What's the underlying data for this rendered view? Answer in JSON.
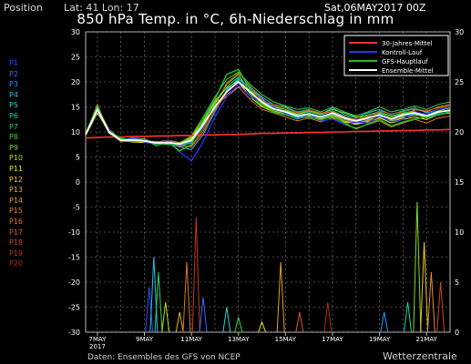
{
  "header": {
    "position_label": "Position",
    "lat_lon": "Lat: 41 Lon: 17",
    "title": "850 hPa Temp. in °C, 6h-Niederschlag in mm",
    "run": "Sat,06MAY2017 00Z"
  },
  "footer": {
    "source": "Daten: Ensembles des GFS von NCEP",
    "brand": "Wetterzentrale"
  },
  "members": [
    {
      "label": "P1",
      "color": "#2d4bff"
    },
    {
      "label": "P2",
      "color": "#3a6bff"
    },
    {
      "label": "P3",
      "color": "#1f9bff"
    },
    {
      "label": "P4",
      "color": "#1ec4f0"
    },
    {
      "label": "P5",
      "color": "#1fd9c8"
    },
    {
      "label": "P6",
      "color": "#22d89c"
    },
    {
      "label": "P7",
      "color": "#27d65e"
    },
    {
      "label": "P8",
      "color": "#39d636"
    },
    {
      "label": "P9",
      "color": "#7fdc28"
    },
    {
      "label": "P10",
      "color": "#b7e022"
    },
    {
      "label": "P11",
      "color": "#f1ea14"
    },
    {
      "label": "P12",
      "color": "#f0c814"
    },
    {
      "label": "P13",
      "color": "#e8b41c"
    },
    {
      "label": "P14",
      "color": "#e6a020"
    },
    {
      "label": "P15",
      "color": "#e48b22"
    },
    {
      "label": "P16",
      "color": "#e07620"
    },
    {
      "label": "P17",
      "color": "#d85e20"
    },
    {
      "label": "P18",
      "color": "#cf4820"
    },
    {
      "label": "P19",
      "color": "#c63620"
    },
    {
      "label": "P20",
      "color": "#b62a1e"
    }
  ],
  "chart_data": {
    "type": "line",
    "title": "850 hPa Temp. in °C, 6h-Niederschlag in mm",
    "x_ticks": [
      "7MAY",
      "9MAY",
      "11MAY",
      "13MAY",
      "15MAY",
      "17MAY",
      "19MAY",
      "21MAY"
    ],
    "x_year_label": "2017",
    "x_range_days": [
      6.5,
      22.0
    ],
    "left_axis": {
      "ylim": [
        -30,
        30
      ],
      "ticks": [
        30,
        25,
        20,
        15,
        10,
        5,
        0,
        -5,
        -10,
        -15,
        -20,
        -25,
        -30
      ]
    },
    "right_axis": {
      "ylim": [
        0,
        30
      ],
      "ticks": [
        30,
        25,
        20,
        15,
        10,
        5,
        0
      ]
    },
    "legend": {
      "placement": "top-right",
      "entries": [
        {
          "name": "30-Jahres-Mittel",
          "color": "#ff3030"
        },
        {
          "name": "Kontroll-Lauf",
          "color": "#3030ff"
        },
        {
          "name": "GFS-Hauptlauf",
          "color": "#20c020"
        },
        {
          "name": "Ensemble-Mittel",
          "color": "#ffffff"
        }
      ]
    },
    "day_x": [
      6.5,
      7.0,
      7.5,
      8.0,
      8.5,
      9.0,
      9.5,
      10.0,
      10.5,
      11.0,
      11.5,
      12.0,
      12.5,
      13.0,
      13.5,
      14.0,
      14.5,
      15.0,
      15.5,
      16.0,
      16.5,
      17.0,
      17.5,
      18.0,
      18.5,
      19.0,
      19.5,
      20.0,
      20.5,
      21.0,
      21.5,
      22.0
    ],
    "climatology": [
      8.8,
      8.9,
      9.0,
      9.0,
      9.1,
      9.1,
      9.2,
      9.2,
      9.3,
      9.3,
      9.4,
      9.4,
      9.5,
      9.5,
      9.6,
      9.7,
      9.7,
      9.8,
      9.8,
      9.9,
      9.9,
      10.0,
      10.0,
      10.1,
      10.1,
      10.2,
      10.2,
      10.3,
      10.3,
      10.4,
      10.4,
      10.5
    ],
    "ensemble_mean": [
      9.5,
      14.5,
      10.0,
      8.3,
      8.4,
      8.2,
      7.8,
      7.9,
      7.6,
      8.3,
      11.5,
      15.0,
      18.0,
      20.0,
      18.0,
      16.0,
      14.6,
      14.0,
      13.2,
      13.6,
      13.0,
      13.8,
      12.8,
      12.2,
      12.8,
      13.4,
      12.6,
      13.4,
      13.8,
      13.2,
      14.0,
      14.3
    ],
    "control_run": [
      9.5,
      14.2,
      10.3,
      8.1,
      8.6,
      8.0,
      7.5,
      8.3,
      6.0,
      4.2,
      8.0,
      13.0,
      17.0,
      19.5,
      17.0,
      16.0,
      15.0,
      13.6,
      12.5,
      13.5,
      12.2,
      12.6,
      11.5,
      12.0,
      11.8,
      13.2,
      12.0,
      12.5,
      14.0,
      13.5,
      14.5,
      15.0
    ],
    "gfs_main_run": [
      9.6,
      15.0,
      10.0,
      8.8,
      8.2,
      8.5,
      7.3,
      8.0,
      6.2,
      7.5,
      12.5,
      16.5,
      21.5,
      22.5,
      18.5,
      15.5,
      14.0,
      13.4,
      12.8,
      13.0,
      12.4,
      13.2,
      11.8,
      10.6,
      11.6,
      12.5,
      11.2,
      12.0,
      12.6,
      13.0,
      13.4,
      14.0
    ],
    "members": [
      [
        9.4,
        14.0,
        10.2,
        8.0,
        8.5,
        8.4,
        7.6,
        7.5,
        7.2,
        7.8,
        11.0,
        15.5,
        19.0,
        21.0,
        17.5,
        15.2,
        14.8,
        14.2,
        13.5,
        14.0,
        13.4,
        14.2,
        13.2,
        12.4,
        13.5,
        14.0,
        13.2,
        13.8,
        14.2,
        12.8,
        13.8,
        14.5
      ],
      [
        9.6,
        15.5,
        9.8,
        8.6,
        8.2,
        8.1,
        8.0,
        8.3,
        7.9,
        9.0,
        12.5,
        16.0,
        17.0,
        19.0,
        18.5,
        16.5,
        15.0,
        14.5,
        13.0,
        13.2,
        12.5,
        13.5,
        12.5,
        11.8,
        12.2,
        13.0,
        12.2,
        13.0,
        14.5,
        14.0,
        15.0,
        15.5
      ],
      [
        9.5,
        14.8,
        10.5,
        8.4,
        8.8,
        8.6,
        7.4,
        7.8,
        7.0,
        6.5,
        9.5,
        14.0,
        18.5,
        20.5,
        19.0,
        17.0,
        15.5,
        15.0,
        14.0,
        14.5,
        13.5,
        14.8,
        13.5,
        12.8,
        13.8,
        14.5,
        13.5,
        14.2,
        14.8,
        13.8,
        14.5,
        15.0
      ],
      [
        9.3,
        13.8,
        10.0,
        8.2,
        8.0,
        7.9,
        7.9,
        8.1,
        7.5,
        8.5,
        11.8,
        15.0,
        18.0,
        20.0,
        17.0,
        15.0,
        14.0,
        13.5,
        12.8,
        13.0,
        12.5,
        13.0,
        12.0,
        11.5,
        12.0,
        12.8,
        11.8,
        12.5,
        13.0,
        12.5,
        13.5,
        13.8
      ],
      [
        9.7,
        15.2,
        10.1,
        8.5,
        8.6,
        8.3,
        7.7,
        7.6,
        7.8,
        9.2,
        13.0,
        17.0,
        20.5,
        22.0,
        19.5,
        17.5,
        16.0,
        15.2,
        14.5,
        14.8,
        14.0,
        15.0,
        14.0,
        13.2,
        14.0,
        15.0,
        14.0,
        14.5,
        15.2,
        14.5,
        15.5,
        16.0
      ],
      [
        9.4,
        14.2,
        9.9,
        8.0,
        8.3,
        8.5,
        7.8,
        8.2,
        7.4,
        7.0,
        10.0,
        14.5,
        17.5,
        19.0,
        16.5,
        14.5,
        13.8,
        13.0,
        12.2,
        12.8,
        12.0,
        12.8,
        11.5,
        10.8,
        11.5,
        12.2,
        11.0,
        11.8,
        12.5,
        11.8,
        12.8,
        13.2
      ],
      [
        9.5,
        14.6,
        10.3,
        8.7,
        8.4,
        8.0,
        7.5,
        7.7,
        7.7,
        8.8,
        12.0,
        15.8,
        19.5,
        21.5,
        18.0,
        16.0,
        15.2,
        14.5,
        13.6,
        14.2,
        13.6,
        14.5,
        13.8,
        13.0,
        13.2,
        13.8,
        13.0,
        13.6,
        14.0,
        13.5,
        14.2,
        14.8
      ],
      [
        9.6,
        14.4,
        10.0,
        8.3,
        8.7,
        8.2,
        8.1,
        8.0,
        7.3,
        8.0,
        11.2,
        14.8,
        18.2,
        20.8,
        18.8,
        16.8,
        14.5,
        13.8,
        13.0,
        13.4,
        12.8,
        13.6,
        12.6,
        12.0,
        12.6,
        13.6,
        12.4,
        13.2,
        13.6,
        12.8,
        13.6,
        14.0
      ],
      [
        9.4,
        15.0,
        10.4,
        8.1,
        8.1,
        8.7,
        7.6,
        8.4,
        7.1,
        7.2,
        10.5,
        15.2,
        19.8,
        21.8,
        19.2,
        16.2,
        15.5,
        14.8,
        13.8,
        14.4,
        13.8,
        14.0,
        13.0,
        12.5,
        13.0,
        14.2,
        13.6,
        14.0,
        14.6,
        14.2,
        14.8,
        15.2
      ],
      [
        9.5,
        14.1,
        9.7,
        8.4,
        8.5,
        8.3,
        7.9,
        7.9,
        7.6,
        8.6,
        12.2,
        16.2,
        18.8,
        20.2,
        17.8,
        15.8,
        14.2,
        13.6,
        12.6,
        13.2,
        12.6,
        13.4,
        12.2,
        11.6,
        12.4,
        13.0,
        12.0,
        12.8,
        13.4,
        13.0,
        14.0,
        14.4
      ]
    ],
    "precip_right_axis_mm": [
      {
        "x": 9.2,
        "v": 4.5
      },
      {
        "x": 9.4,
        "v": 7.5
      },
      {
        "x": 9.6,
        "v": 6.0
      },
      {
        "x": 9.9,
        "v": 3.0
      },
      {
        "x": 10.5,
        "v": 2.0
      },
      {
        "x": 10.8,
        "v": 7.0
      },
      {
        "x": 11.2,
        "v": 11.5
      },
      {
        "x": 11.5,
        "v": 3.5
      },
      {
        "x": 12.5,
        "v": 2.5
      },
      {
        "x": 13.0,
        "v": 1.5
      },
      {
        "x": 14.0,
        "v": 1.0
      },
      {
        "x": 14.8,
        "v": 7.0
      },
      {
        "x": 15.6,
        "v": 2.0
      },
      {
        "x": 16.8,
        "v": 3.0
      },
      {
        "x": 19.2,
        "v": 2.0
      },
      {
        "x": 20.2,
        "v": 3.0
      },
      {
        "x": 20.6,
        "v": 13.0
      },
      {
        "x": 20.9,
        "v": 9.0
      },
      {
        "x": 21.2,
        "v": 6.0
      },
      {
        "x": 21.6,
        "v": 5.0
      }
    ]
  }
}
